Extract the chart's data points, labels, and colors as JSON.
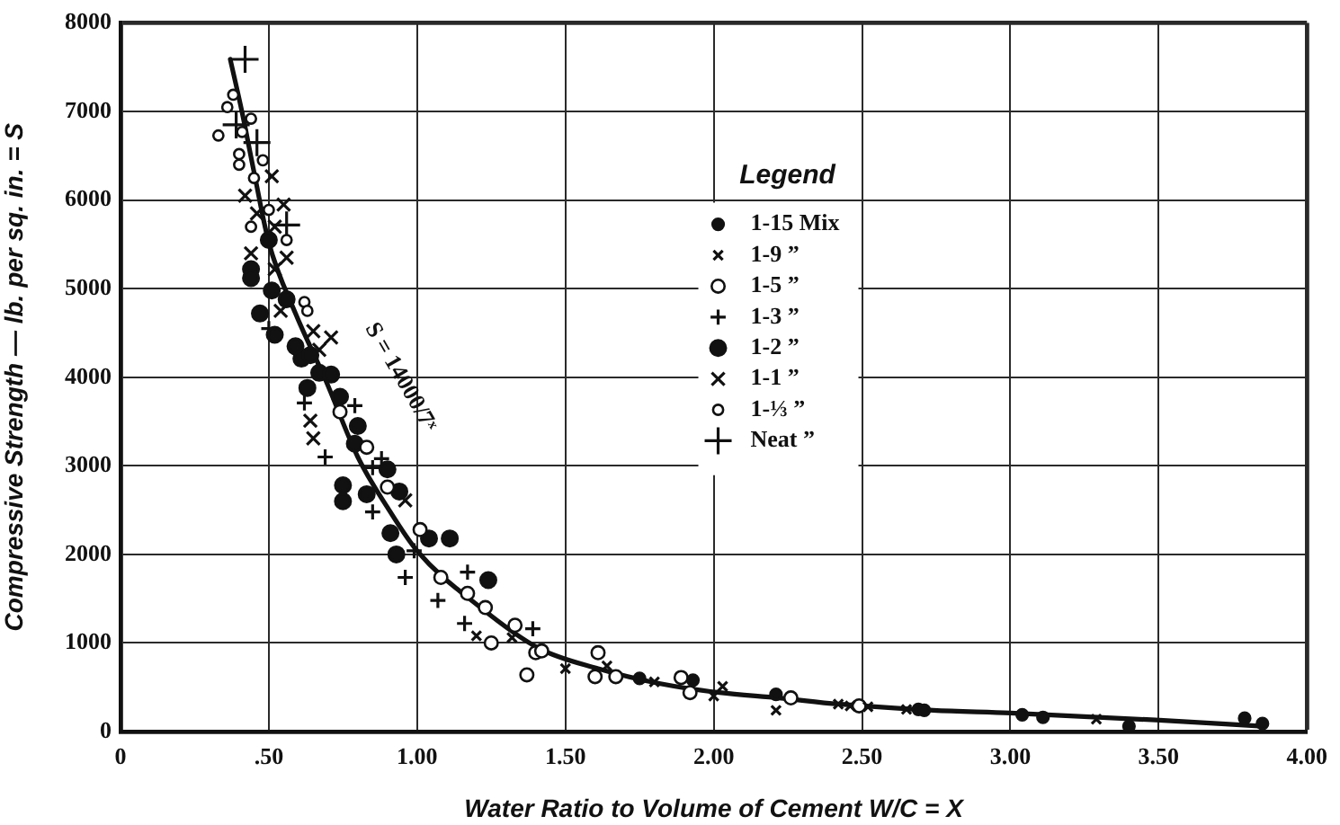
{
  "chart_data": {
    "type": "scatter",
    "xlabel": "Water Ratio to Volume of Cement W/C = X",
    "ylabel": "Compressive Strength — lb. per sq. in. = S",
    "legend_title": "Legend",
    "xlim": [
      0,
      4
    ],
    "ylim": [
      0,
      8000
    ],
    "xticks": [
      0,
      {
        "value": 0.5,
        "label": ".50"
      },
      {
        "value": 1,
        "label": "1.00"
      },
      {
        "value": 1.5,
        "label": "1.50"
      },
      {
        "value": 2,
        "label": "2.00"
      },
      {
        "value": 2.5,
        "label": "2.50"
      },
      {
        "value": 3,
        "label": "3.00"
      },
      {
        "value": 3.5,
        "label": "3.50"
      },
      {
        "value": 4,
        "label": "4.00"
      }
    ],
    "yticks": [
      0,
      1000,
      2000,
      3000,
      4000,
      5000,
      6000,
      7000,
      8000
    ],
    "grid": true,
    "legend": "top",
    "annotations": [
      "S = 14000/7ˣ"
    ],
    "series": [
      {
        "name": "1-15 Mix",
        "color": "#111111",
        "marker": "circle",
        "x": [
          1.75,
          1.93,
          2.21,
          2.69,
          2.71,
          3.04,
          3.11,
          3.4,
          3.79,
          3.85
        ],
        "values": [
          600,
          580,
          420,
          250,
          240,
          190,
          160,
          60,
          150,
          90
        ]
      },
      {
        "name": "1-9 ”",
        "color": "#111111",
        "marker": "cross",
        "x": [
          1.2,
          1.32,
          1.5,
          1.64,
          1.8,
          2.0,
          2.03,
          2.21,
          2.42,
          2.46,
          2.52,
          2.65,
          3.29
        ],
        "values": [
          1080,
          1060,
          710,
          740,
          560,
          400,
          510,
          240,
          310,
          290,
          280,
          250,
          140
        ]
      },
      {
        "name": "1-5 ”",
        "color": "#111111",
        "marker": "open_circle",
        "x": [
          0.74,
          0.83,
          0.9,
          1.01,
          1.08,
          1.17,
          1.23,
          1.25,
          1.33,
          1.37,
          1.4,
          1.42,
          1.6,
          1.61,
          1.67,
          1.89,
          1.92,
          2.26,
          2.49
        ],
        "values": [
          3610,
          3210,
          2760,
          2280,
          1740,
          1560,
          1400,
          1000,
          1200,
          640,
          890,
          910,
          620,
          890,
          620,
          610,
          440,
          380,
          290
        ]
      },
      {
        "name": "1-3 ”",
        "color": "#111111",
        "marker": "plus",
        "x": [
          0.5,
          0.62,
          0.69,
          0.79,
          0.85,
          0.85,
          0.88,
          0.96,
          0.99,
          1.07,
          1.16,
          1.17,
          1.39
        ],
        "values": [
          4550,
          3710,
          3100,
          3680,
          2980,
          2480,
          3080,
          1740,
          2040,
          1480,
          1220,
          1800,
          1160
        ]
      },
      {
        "name": "1-2 ”",
        "color": "#111111",
        "marker": "circle",
        "x": [
          0.44,
          0.44,
          0.47,
          0.5,
          0.51,
          0.52,
          0.56,
          0.59,
          0.61,
          0.63,
          0.64,
          0.67,
          0.71,
          0.74,
          0.75,
          0.75,
          0.79,
          0.8,
          0.83,
          0.9,
          0.91,
          0.93,
          0.94,
          1.04,
          1.11,
          1.24
        ],
        "values": [
          5220,
          5120,
          4720,
          5550,
          4980,
          4480,
          4880,
          4350,
          4210,
          3880,
          4250,
          4050,
          4030,
          3780,
          2780,
          2600,
          3250,
          3450,
          2680,
          2960,
          2240,
          2000,
          2710,
          2180,
          2180,
          1710
        ]
      },
      {
        "name": "1-1 ”",
        "color": "#111111",
        "marker": "cross",
        "x": [
          0.42,
          0.44,
          0.46,
          0.51,
          0.52,
          0.52,
          0.54,
          0.55,
          0.56,
          0.64,
          0.65,
          0.65,
          0.67,
          0.71,
          0.96
        ],
        "values": [
          6050,
          5400,
          5850,
          6270,
          5700,
          5220,
          4750,
          5950,
          5350,
          3510,
          4520,
          3310,
          4310,
          4450,
          2610
        ]
      },
      {
        "name": "1-⅓ ”",
        "color": "#111111",
        "marker": "open_circle",
        "x": [
          0.33,
          0.36,
          0.38,
          0.4,
          0.4,
          0.41,
          0.44,
          0.44,
          0.45,
          0.48,
          0.5,
          0.56,
          0.62,
          0.63
        ],
        "values": [
          6730,
          7050,
          7190,
          6520,
          6400,
          6770,
          6920,
          5700,
          6250,
          6450,
          5890,
          5550,
          4850,
          4750
        ]
      },
      {
        "name": "Neat ”",
        "color": "#111111",
        "marker": "plus",
        "x": [
          0.39,
          0.42,
          0.46,
          0.56
        ],
        "values": [
          6850,
          7590,
          6650,
          5720
        ]
      },
      {
        "type": "line",
        "color": "#111111",
        "marker": "none",
        "line_style": "solid",
        "x": [
          0.37,
          0.41,
          0.45,
          0.5,
          0.59,
          0.69,
          0.8,
          0.9,
          1.0,
          1.21,
          1.41,
          1.61,
          1.82,
          2.02,
          2.22,
          2.42,
          2.74,
          3.0,
          3.49,
          3.85
        ],
        "values": [
          7590,
          6990,
          6320,
          5520,
          4720,
          3980,
          3100,
          2530,
          2040,
          1410,
          940,
          710,
          540,
          440,
          380,
          310,
          240,
          210,
          130,
          60
        ]
      }
    ]
  }
}
